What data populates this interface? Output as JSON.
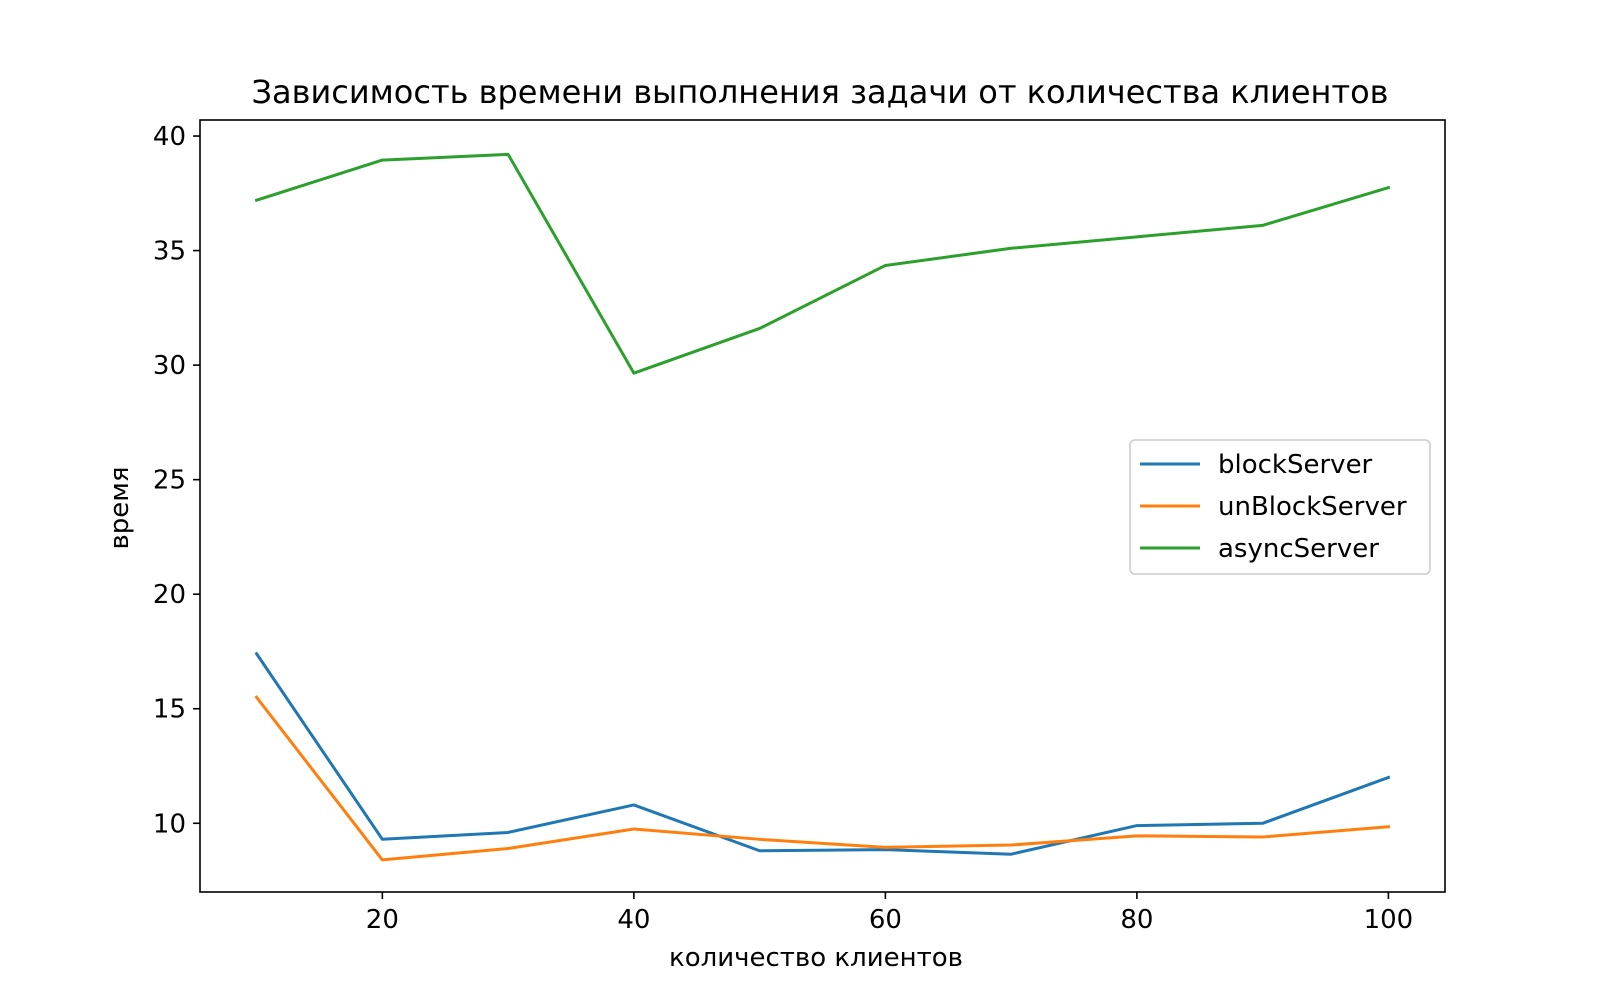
{
  "chart_data": {
    "type": "line",
    "title": "Зависимость времени выполнения задачи от количества клиентов",
    "xlabel": "количество клиентов",
    "ylabel": "время",
    "x": [
      10,
      20,
      30,
      40,
      50,
      60,
      70,
      80,
      90,
      100
    ],
    "xlim": [
      5.5,
      104.5
    ],
    "ylim": [
      7.0,
      40.7
    ],
    "xticks": [
      20,
      40,
      60,
      80,
      100
    ],
    "yticks": [
      10,
      15,
      20,
      25,
      30,
      35,
      40
    ],
    "grid": false,
    "legend_position": "center-right",
    "series": [
      {
        "name": "blockServer",
        "color": "#1f77b4",
        "values": [
          17.4,
          9.3,
          9.6,
          10.8,
          8.8,
          8.85,
          8.65,
          9.9,
          10.0,
          12.0
        ]
      },
      {
        "name": "unBlockServer",
        "color": "#ff7f0e",
        "values": [
          15.5,
          8.4,
          8.9,
          9.75,
          9.3,
          8.95,
          9.05,
          9.45,
          9.4,
          9.85
        ]
      },
      {
        "name": "asyncServer",
        "color": "#2ca02c",
        "values": [
          37.2,
          38.95,
          39.2,
          29.65,
          31.6,
          34.35,
          35.1,
          35.6,
          36.1,
          37.75
        ]
      }
    ]
  }
}
